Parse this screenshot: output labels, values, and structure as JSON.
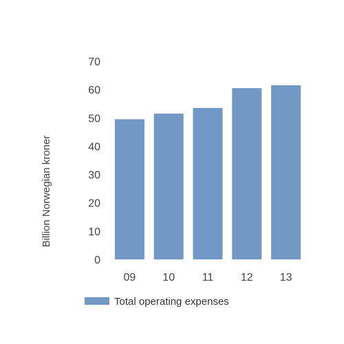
{
  "chart_data": {
    "type": "bar",
    "categories": [
      "09",
      "10",
      "11",
      "12",
      "13"
    ],
    "series": [
      {
        "name": "Total operating expenses",
        "values": [
          49.5,
          51.5,
          53.5,
          60.5,
          61.5
        ],
        "color": "#7299c6"
      }
    ],
    "ylabel": "Billion Norwegian kroner",
    "ylim": [
      0,
      70
    ],
    "yticks": [
      0,
      10,
      20,
      30,
      40,
      50,
      60,
      70
    ],
    "grid": false,
    "legend": "bottom"
  }
}
